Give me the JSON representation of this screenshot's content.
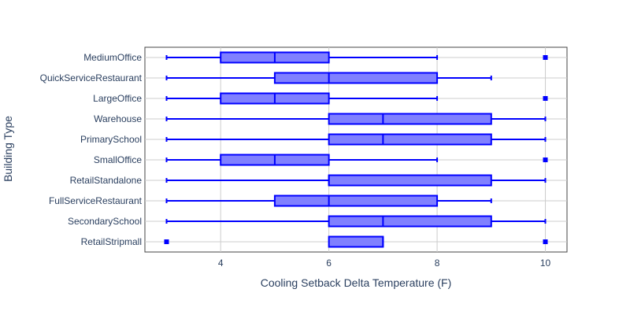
{
  "chart_data": {
    "type": "box",
    "orientation": "horizontal",
    "xlabel": "Cooling Setback Delta Temperature (F)",
    "ylabel": "Building Type",
    "xlim": [
      2.6,
      10.4
    ],
    "xticks": [
      4,
      6,
      8,
      10
    ],
    "grid": true,
    "legend": false,
    "colors": {
      "line": "#0000ff",
      "fill": "#8080ff",
      "grid": "#cccccc",
      "axis_text": "#2a3f5f"
    },
    "categories": [
      "MediumOffice",
      "QuickServiceRestaurant",
      "LargeOffice",
      "Warehouse",
      "PrimarySchool",
      "SmallOffice",
      "RetailStandalone",
      "FullServiceRestaurant",
      "SecondarySchool",
      "RetailStripmall"
    ],
    "boxes": [
      {
        "name": "MediumOffice",
        "lower_whisker": 3,
        "q1": 4,
        "median": 5,
        "q3": 6,
        "upper_whisker": 8,
        "outliers": [
          10
        ]
      },
      {
        "name": "QuickServiceRestaurant",
        "lower_whisker": 3,
        "q1": 5,
        "median": 6,
        "q3": 8,
        "upper_whisker": 9,
        "outliers": []
      },
      {
        "name": "LargeOffice",
        "lower_whisker": 3,
        "q1": 4,
        "median": 5,
        "q3": 6,
        "upper_whisker": 8,
        "outliers": [
          10
        ]
      },
      {
        "name": "Warehouse",
        "lower_whisker": 3,
        "q1": 6,
        "median": 7,
        "q3": 9,
        "upper_whisker": 10,
        "outliers": []
      },
      {
        "name": "PrimarySchool",
        "lower_whisker": 3,
        "q1": 6,
        "median": 7,
        "q3": 9,
        "upper_whisker": 10,
        "outliers": []
      },
      {
        "name": "SmallOffice",
        "lower_whisker": 3,
        "q1": 4,
        "median": 5,
        "q3": 6,
        "upper_whisker": 8,
        "outliers": [
          10
        ]
      },
      {
        "name": "RetailStandalone",
        "lower_whisker": 3,
        "q1": 6,
        "median": 6,
        "q3": 9,
        "upper_whisker": 10,
        "outliers": []
      },
      {
        "name": "FullServiceRestaurant",
        "lower_whisker": 3,
        "q1": 5,
        "median": 6,
        "q3": 8,
        "upper_whisker": 9,
        "outliers": []
      },
      {
        "name": "SecondarySchool",
        "lower_whisker": 3,
        "q1": 6,
        "median": 7,
        "q3": 9,
        "upper_whisker": 10,
        "outliers": []
      },
      {
        "name": "RetailStripmall",
        "lower_whisker": 6,
        "q1": 6,
        "median": 7,
        "q3": 7,
        "upper_whisker": 7,
        "outliers": [
          3,
          10
        ]
      }
    ]
  }
}
